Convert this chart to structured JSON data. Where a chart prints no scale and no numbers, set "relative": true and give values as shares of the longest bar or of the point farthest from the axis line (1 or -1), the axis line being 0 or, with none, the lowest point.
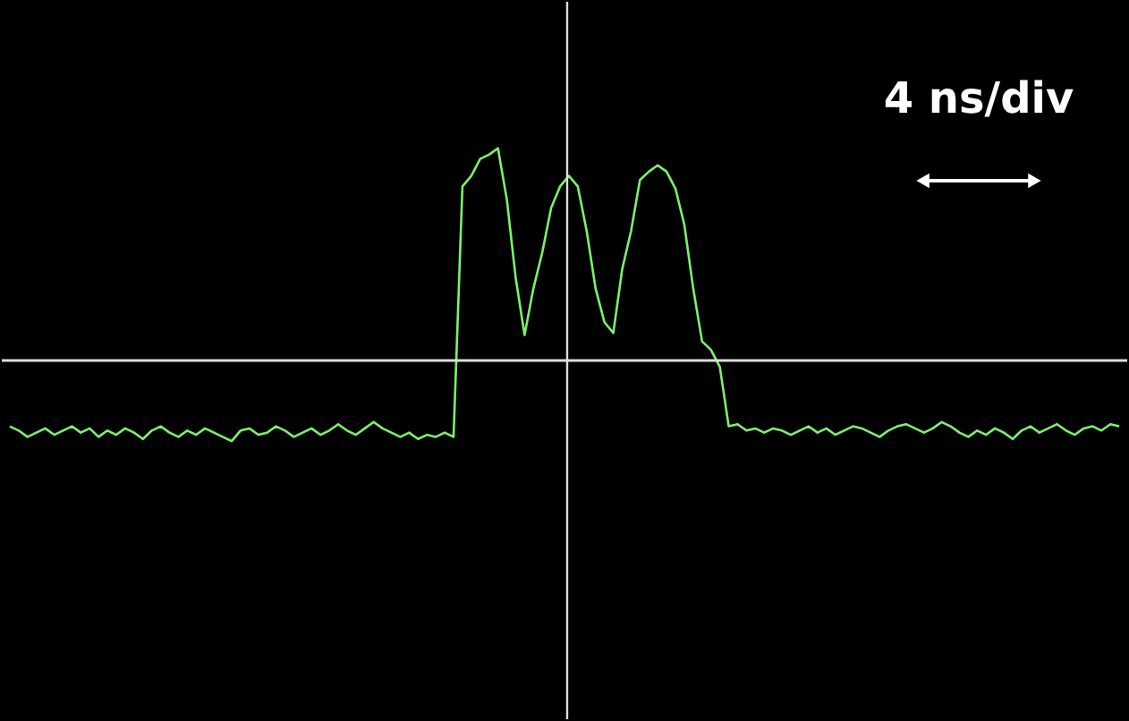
{
  "chart_data": {
    "type": "line",
    "relative": true,
    "color": "#7cf26a",
    "annotations": [
      "4 ns/div"
    ],
    "categories": [
      null,
      null,
      null,
      null,
      null,
      null,
      null,
      null,
      null,
      null,
      null,
      null,
      null,
      null,
      null,
      null,
      null,
      null,
      null,
      null,
      null,
      null,
      null,
      null,
      null,
      null,
      null,
      null,
      null,
      null,
      null,
      null,
      null,
      null,
      null,
      null,
      null,
      null,
      null,
      null,
      null,
      null,
      null,
      null,
      null,
      null,
      null,
      null,
      null,
      null,
      null,
      null,
      null,
      null,
      null,
      null,
      null,
      null,
      null,
      null,
      null,
      null,
      null,
      null,
      null,
      null,
      null,
      null,
      null,
      null,
      null,
      null,
      null,
      null,
      null,
      null,
      null,
      null,
      null,
      null,
      null,
      null,
      null,
      null,
      null,
      null,
      null,
      null,
      null,
      null,
      null,
      null,
      null,
      null,
      null,
      null,
      null,
      null,
      null,
      null,
      null,
      null,
      null,
      null,
      null,
      null,
      null,
      null,
      null,
      null,
      null,
      null,
      null,
      null,
      null,
      null,
      null,
      null,
      null,
      null,
      null,
      null,
      null,
      null,
      null,
      null
    ],
    "values": [
      -0.31,
      -0.33,
      -0.36,
      -0.34,
      -0.32,
      -0.35,
      -0.33,
      -0.31,
      -0.34,
      -0.32,
      -0.36,
      -0.33,
      -0.35,
      -0.32,
      -0.34,
      -0.37,
      -0.33,
      -0.31,
      -0.34,
      -0.36,
      -0.33,
      -0.35,
      -0.32,
      -0.34,
      -0.36,
      -0.38,
      -0.33,
      -0.32,
      -0.35,
      -0.34,
      -0.31,
      -0.33,
      -0.36,
      -0.34,
      -0.32,
      -0.35,
      -0.33,
      -0.3,
      -0.33,
      -0.35,
      -0.32,
      -0.29,
      -0.32,
      -0.34,
      -0.36,
      -0.34,
      -0.37,
      -0.35,
      -0.36,
      -0.34,
      -0.36,
      0.82,
      0.87,
      0.95,
      0.97,
      1.0,
      0.76,
      0.39,
      0.12,
      0.34,
      0.51,
      0.72,
      0.82,
      0.87,
      0.82,
      0.61,
      0.34,
      0.18,
      0.13,
      0.43,
      0.61,
      0.85,
      0.89,
      0.92,
      0.89,
      0.81,
      0.64,
      0.34,
      0.09,
      0.05,
      -0.03,
      -0.31,
      -0.3,
      -0.33,
      -0.32,
      -0.34,
      -0.32,
      -0.33,
      -0.35,
      -0.33,
      -0.31,
      -0.34,
      -0.32,
      -0.35,
      -0.33,
      -0.31,
      -0.32,
      -0.34,
      -0.36,
      -0.33,
      -0.31,
      -0.3,
      -0.32,
      -0.34,
      -0.32,
      -0.29,
      -0.31,
      -0.34,
      -0.36,
      -0.33,
      -0.35,
      -0.32,
      -0.34,
      -0.37,
      -0.33,
      -0.31,
      -0.34,
      -0.32,
      -0.3,
      -0.33,
      -0.35,
      -0.32,
      -0.31,
      -0.33,
      -0.3,
      -0.31
    ]
  }
}
